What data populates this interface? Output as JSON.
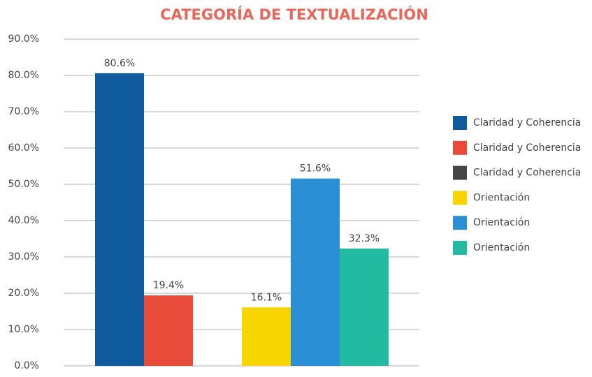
{
  "chart_data": {
    "type": "bar",
    "title": "CATEGORÍA DE TEXTUALIZACIÓN",
    "categories": [
      null
    ],
    "series": [
      {
        "name": "Claridad y Coherencia",
        "color": "#0f5a9c",
        "values": [
          80.6
        ],
        "value_labels": [
          "80.6%"
        ]
      },
      {
        "name": "Claridad y Coherencia",
        "color": "#e84b3a",
        "values": [
          19.4
        ],
        "value_labels": [
          "19.4%"
        ]
      },
      {
        "name": "Claridad y Coherencia",
        "color": "#454545",
        "values": [
          null
        ],
        "value_labels": [
          null
        ]
      },
      {
        "name": "Orientación",
        "color": "#f7d500",
        "values": [
          16.1
        ],
        "value_labels": [
          "16.1%"
        ]
      },
      {
        "name": "Orientación",
        "color": "#2a8fd4",
        "values": [
          51.6
        ],
        "value_labels": [
          "51.6%"
        ]
      },
      {
        "name": "Orientación",
        "color": "#22bba1",
        "values": [
          32.3
        ],
        "value_labels": [
          "32.3%"
        ]
      }
    ],
    "ylim": [
      0,
      90
    ],
    "yticks": [
      {
        "value": 0,
        "label": "0.0%"
      },
      {
        "value": 10,
        "label": "10.0%"
      },
      {
        "value": 20,
        "label": "20.0%"
      },
      {
        "value": 30,
        "label": "30.0%"
      },
      {
        "value": 40,
        "label": "40.0%"
      },
      {
        "value": 50,
        "label": "50.0%"
      },
      {
        "value": 60,
        "label": "60.0%"
      },
      {
        "value": 70,
        "label": "70.0%"
      },
      {
        "value": 80,
        "label": "80.0%"
      },
      {
        "value": 90,
        "label": "90.0%"
      }
    ],
    "grid": true,
    "legend": "right"
  }
}
